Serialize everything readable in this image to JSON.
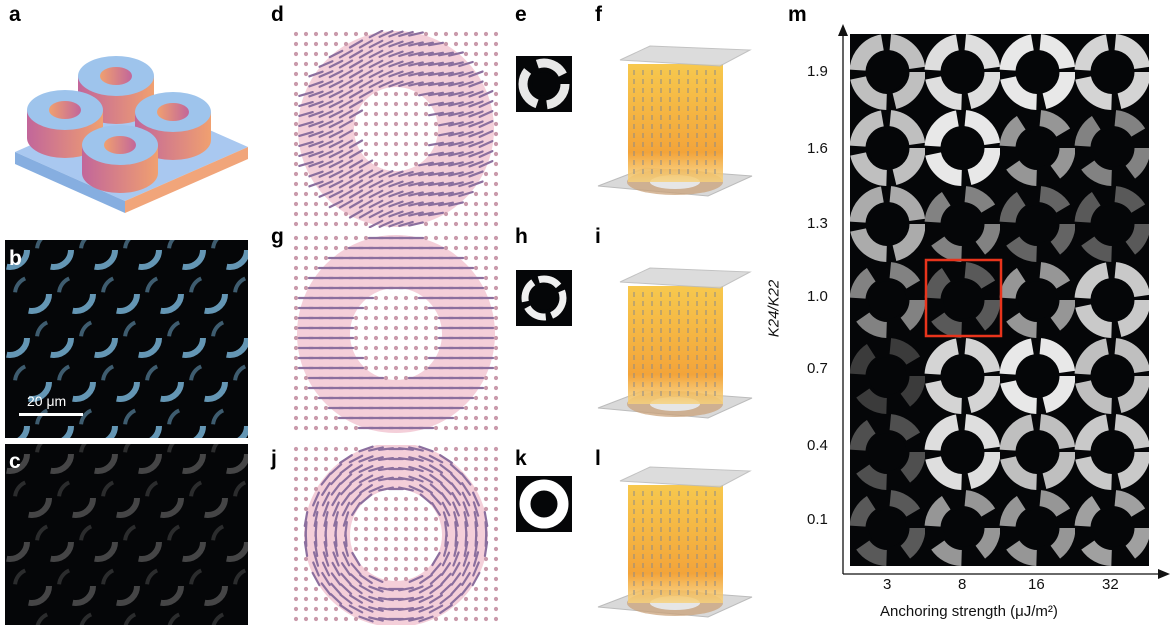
{
  "panel_labels": {
    "a": "a",
    "b": "b",
    "c": "c",
    "d": "d",
    "e": "e",
    "f": "f",
    "g": "g",
    "h": "h",
    "i": "i",
    "j": "j",
    "k": "k",
    "l": "l",
    "m": "m"
  },
  "scale_bar": {
    "label": "20 μm"
  },
  "panel_m": {
    "y_axis_label": "K24/K22",
    "x_axis_label": "Anchoring strength (μJ/m²)",
    "y_ticks": [
      "1.9",
      "1.6",
      "1.3",
      "1.0",
      "0.7",
      "0.4",
      "0.1"
    ],
    "x_ticks": [
      "3",
      "8",
      "16",
      "32"
    ],
    "highlight": {
      "x": "8",
      "y": "1.0",
      "color": "#e8341c"
    }
  },
  "colors": {
    "ring_top": "#9ec4ec",
    "ring_side_a": "#c2669a",
    "ring_side_b": "#f0a070",
    "substrate_top": "#a9c8f0",
    "substrate_side": "#f1a57a",
    "director_pink": "#f2c7d2",
    "column_yellow": "#f6c23a",
    "plate_gray": "#d9d9d9",
    "highlight": "#e8341c"
  },
  "chart_data": {
    "type": "heatmap",
    "x": [
      "3",
      "8",
      "16",
      "32"
    ],
    "y": [
      "1.9",
      "1.6",
      "1.3",
      "1.0",
      "0.7",
      "0.4",
      "0.1"
    ],
    "xlabel": "Anchoring strength (μJ/m²)",
    "ylabel": "K24/K22"
  }
}
